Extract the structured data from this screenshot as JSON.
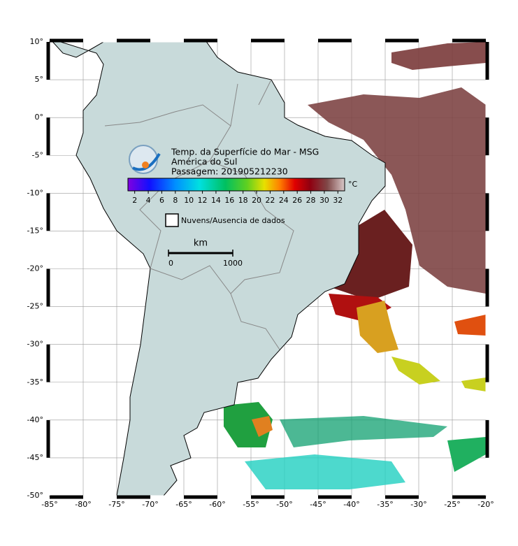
{
  "title": "Temp. da Superfície do Mar - MSG",
  "subtitle": "América do Sul",
  "pass": "Passagem: 201905212230",
  "colorbar": {
    "unit": "°C",
    "lim": [
      1,
      33
    ],
    "ticks": [
      2,
      4,
      6,
      8,
      10,
      12,
      14,
      16,
      18,
      20,
      22,
      24,
      26,
      28,
      30,
      32
    ]
  },
  "legend": {
    "label": "Nuvens/Ausencia de dados"
  },
  "scale": {
    "unit": "km",
    "ticks": [
      0,
      1000
    ]
  },
  "map": {
    "xlim": [
      -85,
      -20
    ],
    "ylim": [
      -50,
      10
    ],
    "xticks": [
      {
        "value": -85,
        "label": "-85°"
      },
      {
        "value": -80,
        "label": "-80°"
      },
      {
        "value": -75,
        "label": "-75°"
      },
      {
        "value": -70,
        "label": "-70°"
      },
      {
        "value": -65,
        "label": "-65°"
      },
      {
        "value": -60,
        "label": "-60°"
      },
      {
        "value": -55,
        "label": "-55°"
      },
      {
        "value": -50,
        "label": "-50°"
      },
      {
        "value": -45,
        "label": "-45°"
      },
      {
        "value": -40,
        "label": "-40°"
      },
      {
        "value": -35,
        "label": "-35°"
      },
      {
        "value": -30,
        "label": "-30°"
      },
      {
        "value": -25,
        "label": "-25°"
      },
      {
        "value": -20,
        "label": "-20°"
      }
    ],
    "yticks": [
      {
        "value": 10,
        "label": "10°"
      },
      {
        "value": 5,
        "label": "5°"
      },
      {
        "value": 0,
        "label": "0°"
      },
      {
        "value": -5,
        "label": "-5°"
      },
      {
        "value": -10,
        "label": "-10°"
      },
      {
        "value": -15,
        "label": "-15°"
      },
      {
        "value": -20,
        "label": "-20°"
      },
      {
        "value": -25,
        "label": "-25°"
      },
      {
        "value": -30,
        "label": "-30°"
      },
      {
        "value": -35,
        "label": "-35°"
      },
      {
        "value": -40,
        "label": "-40°"
      },
      {
        "value": -45,
        "label": "-45°"
      },
      {
        "value": -50,
        "label": "-50°"
      }
    ]
  }
}
